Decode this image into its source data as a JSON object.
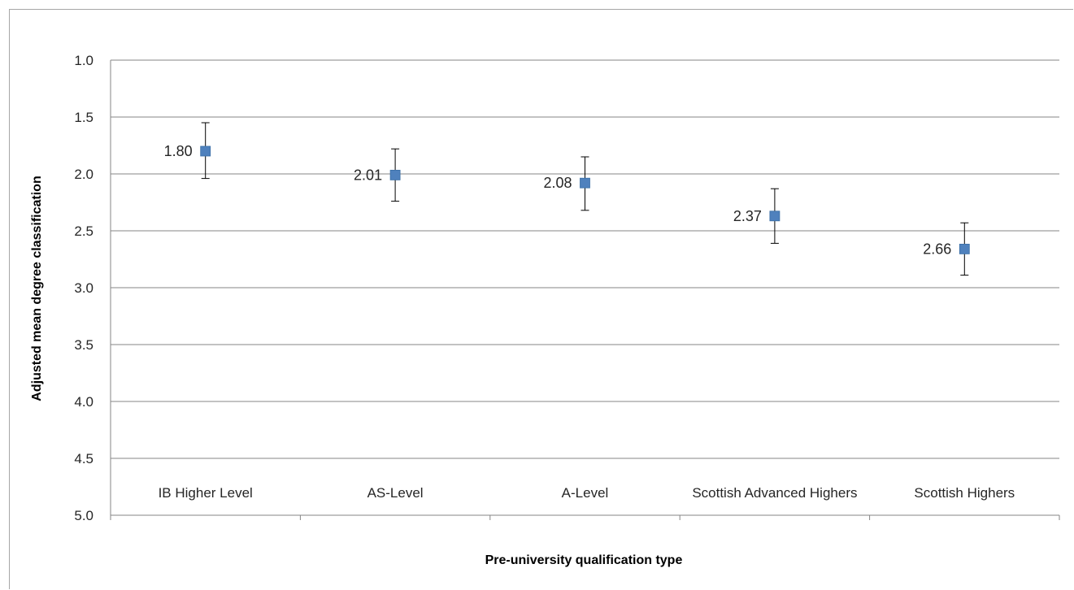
{
  "chart_data": {
    "type": "scatter",
    "title": "",
    "xlabel": "Pre-university qualification type",
    "ylabel": "Adjusted mean degree classification",
    "y_inverted": true,
    "ylim": [
      1.0,
      5.0
    ],
    "yticks": [
      "1.0",
      "1.5",
      "2.0",
      "2.5",
      "3.0",
      "3.5",
      "4.0",
      "4.5",
      "5.0"
    ],
    "grid": true,
    "legend": "none",
    "categories": [
      "IB Higher Level",
      "AS-Level",
      "A-Level",
      "Scottish Advanced Highers",
      "Scottish Highers"
    ],
    "series": [
      {
        "values": [
          1.8,
          2.01,
          2.08,
          2.37,
          2.66
        ],
        "labels": [
          "1.80",
          "2.01",
          "2.08",
          "2.37",
          "2.66"
        ],
        "error_low": [
          2.04,
          2.24,
          2.32,
          2.61,
          2.89
        ],
        "error_high": [
          1.55,
          1.78,
          1.85,
          2.13,
          2.43
        ],
        "color": "#4f81bd"
      }
    ]
  }
}
